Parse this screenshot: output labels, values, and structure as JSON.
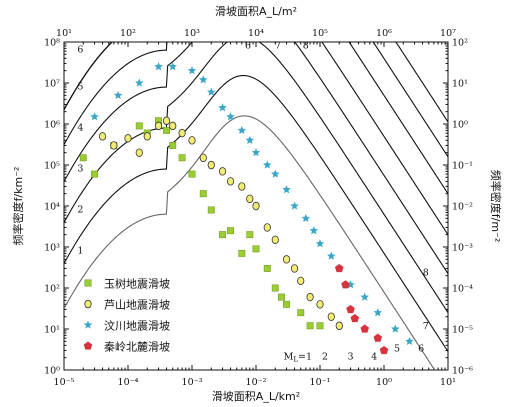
{
  "chart_data": {
    "type": "scatter",
    "x_scale": "log",
    "y_scale": "log",
    "top_axis_label": "滑坡面积A_L/m²",
    "bottom_axis_label": "滑坡面积A_L/km²",
    "left_axis_label": "频率密度f/km⁻²",
    "right_axis_label": "频率密度f/m⁻²",
    "bottom_ticks": [
      "10⁻⁵",
      "10⁻⁴",
      "10⁻³",
      "10⁻²",
      "10⁻¹",
      "10⁰",
      "10¹"
    ],
    "top_ticks": [
      "10¹",
      "10²",
      "10³",
      "10⁴",
      "10⁵",
      "10⁶",
      "10⁷"
    ],
    "left_ticks": [
      "10⁰",
      "10¹",
      "10²",
      "10³",
      "10⁴",
      "10⁵",
      "10⁶",
      "10⁷",
      "10⁸"
    ],
    "right_ticks": [
      "10⁻⁶",
      "10⁻⁵",
      "10⁻⁴",
      "10⁻³",
      "10⁻²",
      "10⁻¹",
      "10⁰",
      "10¹",
      "10²"
    ],
    "xlim": [
      1e-05,
      10
    ],
    "ylim": [
      1,
      100000000
    ],
    "reference_curves": {
      "labels": [
        "1",
        "2",
        "3",
        "4",
        "5",
        "6",
        "7",
        "8"
      ],
      "bottom_label_prefix": "M",
      "bottom_label_subscript": "L",
      "bottom_label_first": "=1",
      "peak_log_x": -3.4,
      "peak_log_y": [
        3.8,
        4.9,
        5.9,
        6.9,
        7.8,
        8.65,
        8.65,
        8.65
      ],
      "tail_log_intercept": [
        1.9,
        2.85,
        3.8,
        4.75,
        5.7,
        6.7,
        7.6,
        8.45
      ],
      "tail_slope": 2.4,
      "left_labels_shown": [
        "1",
        "2",
        "3",
        "4",
        "5",
        "6"
      ],
      "top_labels_shown": [
        "6",
        "7",
        "8"
      ],
      "right_labels_shown": [
        "2",
        "3",
        "4",
        "5",
        "6",
        "7",
        "8"
      ]
    },
    "legend": [
      {
        "name": "玉树地震滑坡",
        "marker": "square",
        "color": "#9acd32"
      },
      {
        "name": "芦山地震滑坡",
        "marker": "circle",
        "color": "#f2ec73"
      },
      {
        "name": "汶川地震滑坡",
        "marker": "star",
        "color": "#3aa6c8"
      },
      {
        "name": "秦岭北麓滑坡",
        "marker": "pentagon",
        "color": "#d8323c"
      }
    ],
    "series": [
      {
        "name": "玉树地震滑坡",
        "marker": "square",
        "color": "#9acd32",
        "points": [
          [
            2e-05,
            150000
          ],
          [
            3e-05,
            60000
          ],
          [
            6e-05,
            300000
          ],
          [
            0.00015,
            900000
          ],
          [
            0.0002,
            600000
          ],
          [
            0.0003,
            1200000
          ],
          [
            0.0004,
            700000
          ],
          [
            0.0005,
            300000
          ],
          [
            0.0007,
            150000
          ],
          [
            0.001,
            60000
          ],
          [
            0.0015,
            20000
          ],
          [
            0.002,
            8000
          ],
          [
            0.003,
            2000
          ],
          [
            0.004,
            2500
          ],
          [
            0.006,
            700
          ],
          [
            0.008,
            2000
          ],
          [
            0.01,
            900
          ],
          [
            0.015,
            300
          ],
          [
            0.02,
            100
          ],
          [
            0.025,
            60
          ],
          [
            0.03,
            40
          ],
          [
            0.05,
            25
          ],
          [
            0.07,
            12
          ],
          [
            0.1,
            12
          ]
        ]
      },
      {
        "name": "芦山地震滑坡",
        "marker": "circle",
        "color": "#f2ec73",
        "points": [
          [
            4e-05,
            500000
          ],
          [
            6e-05,
            300000
          ],
          [
            0.0001,
            450000
          ],
          [
            0.00015,
            200000
          ],
          [
            0.0002,
            500000
          ],
          [
            0.0003,
            900000
          ],
          [
            0.0004,
            1200000
          ],
          [
            0.0005,
            900000
          ],
          [
            0.0007,
            600000
          ],
          [
            0.001,
            400000
          ],
          [
            0.0015,
            150000
          ],
          [
            0.002,
            100000
          ],
          [
            0.003,
            70000
          ],
          [
            0.004,
            40000
          ],
          [
            0.006,
            30000
          ],
          [
            0.008,
            15000
          ],
          [
            0.01,
            10000
          ],
          [
            0.015,
            3000
          ],
          [
            0.02,
            1500
          ],
          [
            0.03,
            500
          ],
          [
            0.04,
            300
          ],
          [
            0.05,
            150
          ],
          [
            0.07,
            60
          ],
          [
            0.1,
            40
          ],
          [
            0.15,
            20
          ],
          [
            0.2,
            12
          ]
        ]
      },
      {
        "name": "汶川地震滑坡",
        "marker": "star",
        "color": "#3aa6c8",
        "points": [
          [
            3e-05,
            1500000
          ],
          [
            7e-05,
            5000000
          ],
          [
            0.00015,
            10000000
          ],
          [
            0.0003,
            25000000
          ],
          [
            0.0005,
            25000000
          ],
          [
            0.001,
            20000000
          ],
          [
            0.0015,
            12000000
          ],
          [
            0.002,
            6000000
          ],
          [
            0.003,
            2500000
          ],
          [
            0.004,
            1500000
          ],
          [
            0.006,
            700000
          ],
          [
            0.008,
            400000
          ],
          [
            0.01,
            200000
          ],
          [
            0.015,
            100000
          ],
          [
            0.02,
            60000
          ],
          [
            0.03,
            25000
          ],
          [
            0.04,
            10000
          ],
          [
            0.06,
            5000
          ],
          [
            0.08,
            2500
          ],
          [
            0.1,
            1200
          ],
          [
            0.15,
            600
          ],
          [
            0.2,
            300
          ],
          [
            0.3,
            120
          ],
          [
            0.5,
            60
          ],
          [
            0.8,
            25
          ],
          [
            1.5,
            10
          ],
          [
            2.5,
            5
          ]
        ]
      },
      {
        "name": "秦岭北麓滑坡",
        "marker": "pentagon",
        "color": "#d8323c",
        "points": [
          [
            0.2,
            300
          ],
          [
            0.25,
            120
          ],
          [
            0.3,
            30
          ],
          [
            0.35,
            18
          ],
          [
            0.5,
            10
          ],
          [
            0.8,
            6
          ],
          [
            1.0,
            3
          ]
        ]
      }
    ]
  }
}
